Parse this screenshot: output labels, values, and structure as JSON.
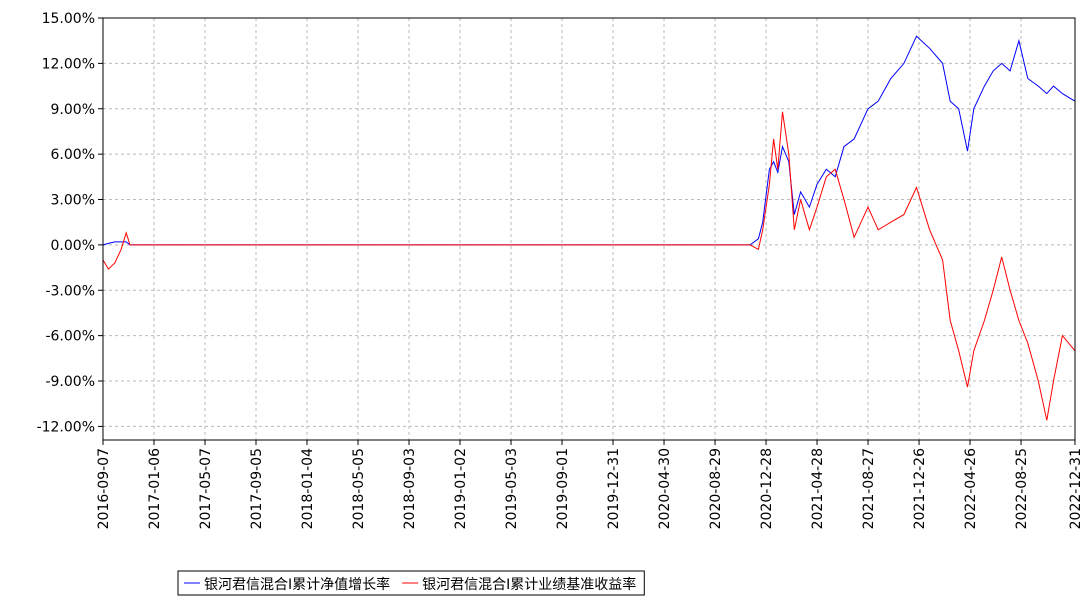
{
  "chart_data": {
    "type": "line",
    "x": [
      "2016-09-07",
      "2016-09-20",
      "2016-10-05",
      "2016-10-20",
      "2016-11-01",
      "2016-11-10",
      "2020-11-20",
      "2020-12-10",
      "2020-12-20",
      "2021-01-05",
      "2021-01-15",
      "2021-01-25",
      "2021-02-05",
      "2021-02-20",
      "2021-03-05",
      "2021-03-20",
      "2021-04-10",
      "2021-04-28",
      "2021-05-20",
      "2021-06-10",
      "2021-07-01",
      "2021-07-25",
      "2021-08-27",
      "2021-09-20",
      "2021-10-20",
      "2021-11-20",
      "2021-12-20",
      "2022-01-20",
      "2022-02-20",
      "2022-03-10",
      "2022-03-30",
      "2022-04-20",
      "2022-05-05",
      "2022-05-30",
      "2022-06-20",
      "2022-07-10",
      "2022-07-30",
      "2022-08-20",
      "2022-09-10",
      "2022-10-05",
      "2022-10-25",
      "2022-11-10",
      "2022-12-01",
      "2022-12-31"
    ],
    "series": [
      {
        "name": "银河君信混合I累计净值增长率",
        "color": "#0000ff",
        "values": [
          0,
          0.1,
          0.2,
          0.2,
          0.2,
          0,
          0,
          0.4,
          1.5,
          5.0,
          5.5,
          4.8,
          6.5,
          5.5,
          2.0,
          3.5,
          2.5,
          4.0,
          5.0,
          4.5,
          6.5,
          7.0,
          9.0,
          9.5,
          11.0,
          12.0,
          13.8,
          13.0,
          12.0,
          9.5,
          9.0,
          6.2,
          9.0,
          10.5,
          11.5,
          12.0,
          11.5,
          13.5,
          11.0,
          10.5,
          10.0,
          10.5,
          10.0,
          9.5
        ]
      },
      {
        "name": "银河君信混合I累计业绩基准收益率",
        "color": "#ff0000",
        "values": [
          -1.0,
          -1.6,
          -1.2,
          -0.3,
          0.8,
          0,
          0,
          -0.3,
          1.0,
          4.0,
          7.0,
          5.0,
          8.8,
          6.0,
          1.0,
          3.0,
          1.0,
          2.5,
          4.5,
          5.0,
          3.0,
          0.5,
          2.5,
          1.0,
          1.5,
          2.0,
          3.8,
          1.0,
          -1.0,
          -5.0,
          -7.0,
          -9.4,
          -7.0,
          -5.0,
          -3.0,
          -0.8,
          -3.0,
          -5.0,
          -6.5,
          -9.0,
          -11.6,
          -9.0,
          -6.0,
          -7.0
        ]
      }
    ],
    "xlim": [
      "2016-09-07",
      "2022-12-31"
    ],
    "xticks": [
      "2016-09-07",
      "2017-01-06",
      "2017-05-07",
      "2017-09-05",
      "2018-01-04",
      "2018-05-05",
      "2018-09-03",
      "2019-01-02",
      "2019-05-03",
      "2019-09-01",
      "2019-12-31",
      "2020-04-30",
      "2020-08-29",
      "2020-12-28",
      "2021-04-28",
      "2021-08-27",
      "2021-12-26",
      "2022-04-26",
      "2022-08-25",
      "2022-12-31"
    ],
    "ylim": [
      -12.9,
      15
    ],
    "yticks": [
      {
        "value": -12,
        "label": "-12.00%"
      },
      {
        "value": -9,
        "label": "-9.00%"
      },
      {
        "value": -6,
        "label": "-6.00%"
      },
      {
        "value": -3,
        "label": "-3.00%"
      },
      {
        "value": 0,
        "label": "0.00%"
      },
      {
        "value": 3,
        "label": "3.00%"
      },
      {
        "value": 6,
        "label": "6.00%"
      },
      {
        "value": 9,
        "label": "9.00%"
      },
      {
        "value": 12,
        "label": "12.00%"
      },
      {
        "value": 15,
        "label": "15.00%"
      }
    ],
    "grid": true
  }
}
